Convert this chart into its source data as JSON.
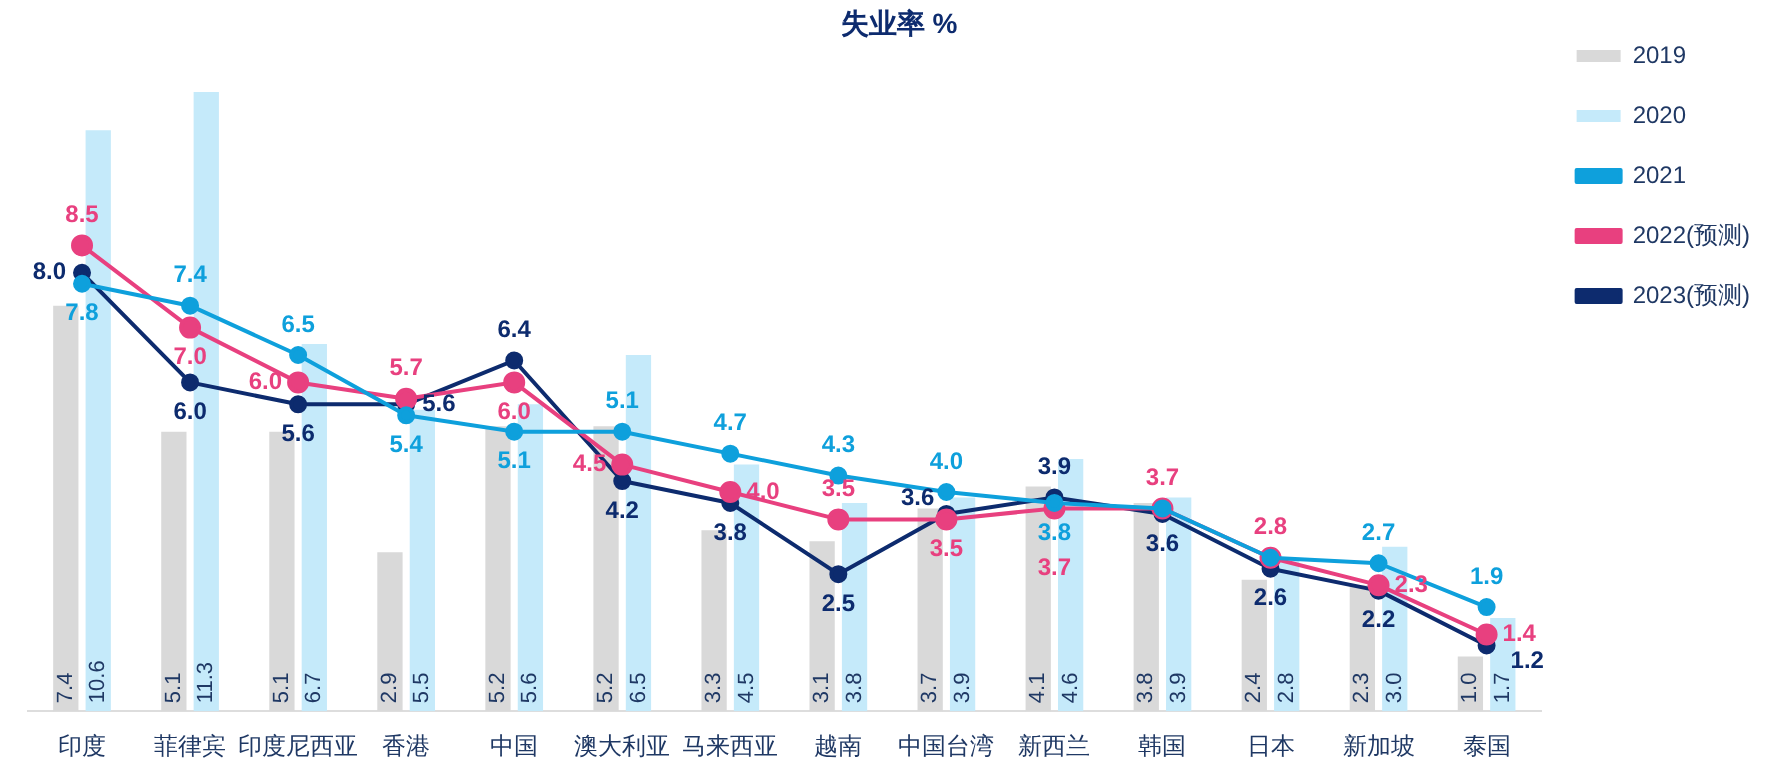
{
  "chart_data": {
    "type": "bar",
    "title": "失业率 %",
    "categories": [
      "印度",
      "菲律宾",
      "印度尼西亚",
      "香港",
      "中国",
      "澳大利亚",
      "马来西亚",
      "越南",
      "中国台湾",
      "新西兰",
      "韩国",
      "日本",
      "新加坡",
      "泰国"
    ],
    "series": [
      {
        "name": "2019",
        "type": "bar",
        "color": "#d9d9d9",
        "values": [
          7.4,
          5.1,
          5.1,
          2.9,
          5.2,
          5.2,
          3.3,
          3.1,
          3.7,
          4.1,
          3.8,
          2.4,
          2.3,
          1.0
        ],
        "value_labels": [
          "7.4",
          "5.1",
          "5.1",
          "2.9",
          "5.2",
          "5.2",
          "3.3",
          "3.1",
          "3.7",
          "4.1",
          "3.8",
          "2.4",
          "2.3",
          "1.0"
        ]
      },
      {
        "name": "2020",
        "type": "bar",
        "color": "#c5eafa",
        "values": [
          10.6,
          11.3,
          6.7,
          5.5,
          5.6,
          6.5,
          4.5,
          3.8,
          3.9,
          4.6,
          3.9,
          2.8,
          3.0,
          1.7
        ],
        "value_labels": [
          "10.6",
          "11.3",
          "6.7",
          "5.5",
          "5.6",
          "6.5",
          "4.5",
          "3.8",
          "3.9",
          "4.6",
          "3.9",
          "2.8",
          "3.0",
          "1.7"
        ]
      },
      {
        "name": "2021",
        "type": "line",
        "color": "#0ea0dc",
        "values": [
          7.8,
          7.4,
          6.5,
          5.4,
          5.1,
          5.1,
          4.7,
          4.3,
          4.0,
          3.8,
          3.7,
          2.8,
          2.7,
          1.9
        ],
        "value_labels": [
          "7.8",
          "7.4",
          "6.5",
          "5.4",
          "5.1",
          "5.1",
          "4.7",
          "4.3",
          "4.0",
          "3.8",
          null,
          null,
          "2.7",
          "1.9"
        ]
      },
      {
        "name": "2022(预测)",
        "type": "line",
        "color": "#e8407f",
        "values": [
          8.5,
          7.0,
          6.0,
          5.7,
          6.0,
          4.5,
          4.0,
          3.5,
          3.5,
          3.7,
          3.7,
          2.8,
          2.3,
          1.4
        ],
        "value_labels": [
          "8.5",
          "7.0",
          "6.0",
          "5.7",
          "6.0",
          "4.5",
          "4.0",
          "3.5",
          "3.5",
          "3.7",
          "3.7",
          "2.8",
          "2.3",
          "1.4"
        ]
      },
      {
        "name": "2023(预测)",
        "type": "line",
        "color": "#0d2b6e",
        "values": [
          8.0,
          6.0,
          5.6,
          5.6,
          6.4,
          4.2,
          3.8,
          2.5,
          3.6,
          3.9,
          3.6,
          2.6,
          2.2,
          1.2
        ],
        "value_labels": [
          "8.0",
          "6.0",
          "5.6",
          "5.6",
          "6.4",
          "4.2",
          "3.8",
          "2.5",
          "3.6",
          "3.9",
          "3.6",
          "2.6",
          "2.2",
          "1.2"
        ]
      }
    ],
    "data_labels": true,
    "grid": false,
    "legend": "right",
    "marker": "circle",
    "line_style": "solid"
  }
}
